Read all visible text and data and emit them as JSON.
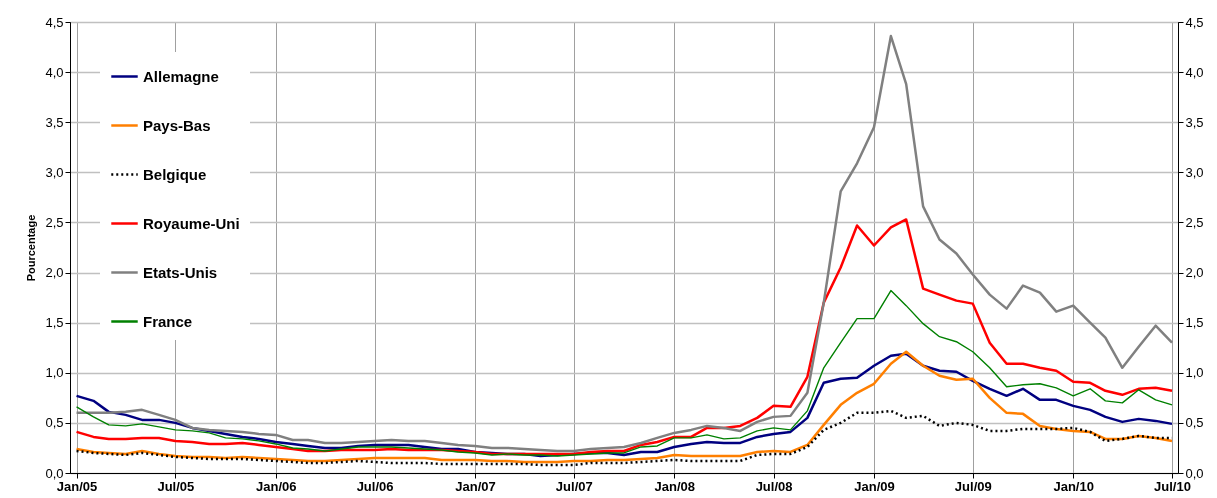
{
  "chart_data": {
    "type": "line",
    "ylabel": "Pourcentage",
    "x": [
      "2005-01",
      "2005-02",
      "2005-03",
      "2005-04",
      "2005-05",
      "2005-06",
      "2005-07",
      "2005-08",
      "2005-09",
      "2005-10",
      "2005-11",
      "2005-12",
      "2006-01",
      "2006-02",
      "2006-03",
      "2006-04",
      "2006-05",
      "2006-06",
      "2006-07",
      "2006-08",
      "2006-09",
      "2006-10",
      "2006-11",
      "2006-12",
      "2007-01",
      "2007-02",
      "2007-03",
      "2007-04",
      "2007-05",
      "2007-06",
      "2007-07",
      "2007-08",
      "2007-09",
      "2007-10",
      "2007-11",
      "2007-12",
      "2008-01",
      "2008-02",
      "2008-03",
      "2008-04",
      "2008-05",
      "2008-06",
      "2008-07",
      "2008-08",
      "2008-09",
      "2008-10",
      "2008-11",
      "2008-12",
      "2009-01",
      "2009-02",
      "2009-03",
      "2009-04",
      "2009-05",
      "2009-06",
      "2009-07",
      "2009-08",
      "2009-09",
      "2009-10",
      "2009-11",
      "2009-12",
      "2010-01",
      "2010-02",
      "2010-03",
      "2010-04",
      "2010-05",
      "2010-06",
      "2010-07"
    ],
    "series": [
      {
        "name": "Allemagne",
        "color": "#000080",
        "values": [
          0.77,
          0.72,
          0.61,
          0.58,
          0.53,
          0.53,
          0.5,
          0.45,
          0.42,
          0.39,
          0.36,
          0.34,
          0.31,
          0.29,
          0.27,
          0.25,
          0.25,
          0.27,
          0.28,
          0.28,
          0.28,
          0.26,
          0.24,
          0.24,
          0.21,
          0.2,
          0.19,
          0.19,
          0.17,
          0.18,
          0.19,
          0.2,
          0.2,
          0.18,
          0.21,
          0.21,
          0.26,
          0.29,
          0.31,
          0.3,
          0.3,
          0.36,
          0.39,
          0.41,
          0.55,
          0.9,
          0.94,
          0.95,
          1.07,
          1.17,
          1.19,
          1.07,
          1.02,
          1.01,
          0.92,
          0.84,
          0.77,
          0.84,
          0.73,
          0.73,
          0.67,
          0.63,
          0.56,
          0.51,
          0.54,
          0.52,
          0.49
        ]
      },
      {
        "name": "Pays-Bas",
        "color": "#ff7f00",
        "values": [
          0.24,
          0.21,
          0.2,
          0.19,
          0.22,
          0.19,
          0.17,
          0.16,
          0.16,
          0.15,
          0.16,
          0.15,
          0.14,
          0.13,
          0.12,
          0.12,
          0.13,
          0.14,
          0.15,
          0.15,
          0.15,
          0.15,
          0.13,
          0.13,
          0.13,
          0.12,
          0.12,
          0.11,
          0.11,
          0.11,
          0.12,
          0.12,
          0.13,
          0.13,
          0.14,
          0.15,
          0.18,
          0.17,
          0.17,
          0.17,
          0.17,
          0.21,
          0.22,
          0.21,
          0.28,
          0.48,
          0.68,
          0.8,
          0.89,
          1.09,
          1.21,
          1.07,
          0.97,
          0.93,
          0.94,
          0.75,
          0.6,
          0.59,
          0.47,
          0.44,
          0.42,
          0.41,
          0.34,
          0.34,
          0.37,
          0.35,
          0.32
        ]
      },
      {
        "name": "Belgique",
        "color": "#000000",
        "line_style": "dotted",
        "values": [
          0.22,
          0.2,
          0.19,
          0.18,
          0.2,
          0.18,
          0.16,
          0.15,
          0.14,
          0.14,
          0.14,
          0.13,
          0.12,
          0.11,
          0.1,
          0.1,
          0.11,
          0.12,
          0.11,
          0.1,
          0.1,
          0.1,
          0.09,
          0.09,
          0.09,
          0.09,
          0.09,
          0.09,
          0.08,
          0.08,
          0.08,
          0.1,
          0.1,
          0.1,
          0.11,
          0.12,
          0.13,
          0.12,
          0.12,
          0.12,
          0.12,
          0.18,
          0.19,
          0.19,
          0.26,
          0.43,
          0.5,
          0.6,
          0.6,
          0.62,
          0.55,
          0.57,
          0.47,
          0.5,
          0.48,
          0.42,
          0.42,
          0.44,
          0.44,
          0.44,
          0.45,
          0.41,
          0.32,
          0.34,
          0.37,
          0.35,
          0.35
        ]
      },
      {
        "name": "Royaume-Uni",
        "color": "#ff0000",
        "values": [
          0.41,
          0.36,
          0.34,
          0.34,
          0.35,
          0.35,
          0.32,
          0.31,
          0.29,
          0.29,
          0.3,
          0.28,
          0.26,
          0.24,
          0.22,
          0.22,
          0.23,
          0.23,
          0.23,
          0.24,
          0.23,
          0.23,
          0.23,
          0.22,
          0.21,
          0.19,
          0.19,
          0.19,
          0.19,
          0.19,
          0.19,
          0.21,
          0.22,
          0.22,
          0.28,
          0.31,
          0.36,
          0.36,
          0.45,
          0.45,
          0.47,
          0.55,
          0.67,
          0.66,
          0.96,
          1.7,
          2.05,
          2.47,
          2.27,
          2.45,
          2.53,
          1.84,
          1.78,
          1.72,
          1.69,
          1.3,
          1.09,
          1.09,
          1.05,
          1.02,
          0.91,
          0.9,
          0.82,
          0.78,
          0.84,
          0.85,
          0.82
        ]
      },
      {
        "name": "Etats-Unis",
        "color": "#808080",
        "values": [
          0.6,
          0.6,
          0.6,
          0.61,
          0.63,
          0.58,
          0.53,
          0.45,
          0.43,
          0.42,
          0.41,
          0.39,
          0.38,
          0.33,
          0.33,
          0.3,
          0.3,
          0.31,
          0.32,
          0.33,
          0.32,
          0.32,
          0.3,
          0.28,
          0.27,
          0.25,
          0.25,
          0.24,
          0.23,
          0.22,
          0.22,
          0.24,
          0.25,
          0.26,
          0.3,
          0.35,
          0.4,
          0.43,
          0.47,
          0.45,
          0.42,
          0.51,
          0.56,
          0.57,
          0.8,
          1.7,
          2.81,
          3.09,
          3.45,
          4.36,
          3.88,
          2.66,
          2.33,
          2.19,
          1.98,
          1.78,
          1.64,
          1.87,
          1.8,
          1.61,
          1.67,
          1.5,
          1.35,
          1.05,
          1.26,
          1.47,
          1.3
        ]
      },
      {
        "name": "France",
        "color": "#008000",
        "values": [
          0.66,
          0.56,
          0.48,
          0.47,
          0.49,
          0.46,
          0.43,
          0.42,
          0.4,
          0.35,
          0.34,
          0.32,
          0.29,
          0.25,
          0.24,
          0.22,
          0.24,
          0.26,
          0.26,
          0.26,
          0.25,
          0.24,
          0.23,
          0.21,
          0.2,
          0.18,
          0.19,
          0.18,
          0.18,
          0.17,
          0.18,
          0.19,
          0.2,
          0.2,
          0.26,
          0.27,
          0.35,
          0.35,
          0.38,
          0.34,
          0.35,
          0.42,
          0.45,
          0.43,
          0.62,
          1.05,
          1.3,
          1.54,
          1.54,
          1.82,
          1.67,
          1.49,
          1.36,
          1.31,
          1.21,
          1.05,
          0.86,
          0.88,
          0.89,
          0.85,
          0.77,
          0.84,
          0.72,
          0.7,
          0.83,
          0.73,
          0.68
        ]
      }
    ],
    "xlim": [
      "2004-12-20",
      "2010-07-12"
    ],
    "xticks": [
      {
        "value": "2005-01",
        "label": "Jan/05"
      },
      {
        "value": "2005-07",
        "label": "Jul/05"
      },
      {
        "value": "2006-01",
        "label": "Jan/06"
      },
      {
        "value": "2006-07",
        "label": "Jul/06"
      },
      {
        "value": "2007-01",
        "label": "Jan/07"
      },
      {
        "value": "2007-07",
        "label": "Jul/07"
      },
      {
        "value": "2008-01",
        "label": "Jan/08"
      },
      {
        "value": "2008-07",
        "label": "Jul/08"
      },
      {
        "value": "2009-01",
        "label": "Jan/09"
      },
      {
        "value": "2009-07",
        "label": "Jul/09"
      },
      {
        "value": "2010-01",
        "label": "Jan/10"
      },
      {
        "value": "2010-07",
        "label": "Jul/10"
      }
    ],
    "ylim": [
      0,
      4.5
    ],
    "yticks": [
      {
        "value": 0,
        "label": "0,0"
      },
      {
        "value": 0.5,
        "label": "0,5"
      },
      {
        "value": 1,
        "label": "1,0"
      },
      {
        "value": 1.5,
        "label": "1,5"
      },
      {
        "value": 2,
        "label": "2,0"
      },
      {
        "value": 2.5,
        "label": "2,5"
      },
      {
        "value": 3,
        "label": "3,0"
      },
      {
        "value": 3.5,
        "label": "3,5"
      },
      {
        "value": 4,
        "label": "4,0"
      },
      {
        "value": 4.5,
        "label": "4,5"
      }
    ],
    "y2lim": [
      0,
      4.5
    ],
    "y2ticks": [
      {
        "value": 0,
        "label": "0,0"
      },
      {
        "value": 0.5,
        "label": "0,5"
      },
      {
        "value": 1,
        "label": "1,0"
      },
      {
        "value": 1.5,
        "label": "1,5"
      },
      {
        "value": 2,
        "label": "2,0"
      },
      {
        "value": 2.5,
        "label": "2,5"
      },
      {
        "value": 3,
        "label": "3,0"
      },
      {
        "value": 3.5,
        "label": "3,5"
      },
      {
        "value": 4,
        "label": "4,0"
      },
      {
        "value": 4.5,
        "label": "4,5"
      }
    ],
    "grid": true,
    "legend": "top left"
  }
}
